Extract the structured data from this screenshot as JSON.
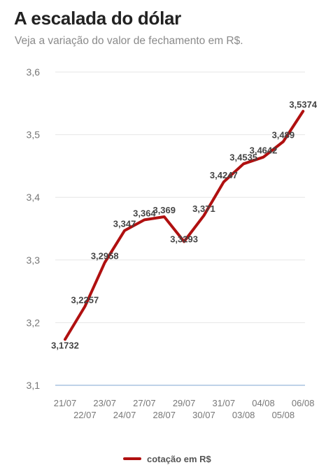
{
  "title": "A escalada do dólar",
  "subtitle": "Veja a variação do valor de fechamento em R$.",
  "colors": {
    "line": "#b01010",
    "grid": "#e6e6e6",
    "baseline": "#a8c4e0"
  },
  "chart_data": {
    "type": "line",
    "title": "A escalada do dólar",
    "subtitle": "Veja a variação do valor de fechamento em R$.",
    "categories": [
      "21/07",
      "22/07",
      "23/07",
      "24/07",
      "27/07",
      "28/07",
      "29/07",
      "30/07",
      "31/07",
      "03/08",
      "04/08",
      "05/08",
      "06/08"
    ],
    "series": [
      {
        "name": "cotação em R$",
        "values": [
          3.1732,
          3.2257,
          3.2958,
          3.347,
          3.3641,
          3.369,
          3.3293,
          3.371,
          3.4247,
          3.4535,
          3.4642,
          3.489,
          3.5374
        ],
        "labels": [
          "3,1732",
          "3,2257",
          "3,2958",
          "3,347",
          "3,364",
          "3,369",
          "3,3293",
          "3,371",
          "3,4247",
          "3,4535",
          "3,4642",
          "3,489",
          "3,5374"
        ]
      }
    ],
    "y_ticks": [
      "3,1",
      "3,2",
      "3,3",
      "3,4",
      "3,5",
      "3,6"
    ],
    "ylim": [
      3.1,
      3.6
    ],
    "grid": true,
    "legend": "bottom",
    "xlabel": "",
    "ylabel": ""
  }
}
